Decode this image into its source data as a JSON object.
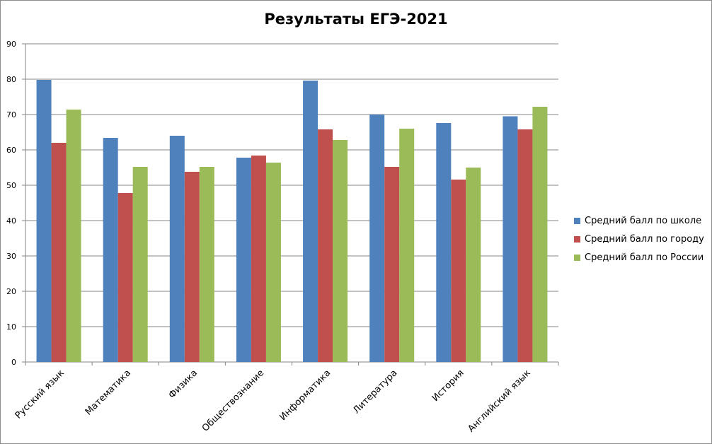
{
  "chart_data": {
    "type": "bar",
    "title": "Результаты ЕГЭ-2021",
    "xlabel": "",
    "ylabel": "",
    "ylim": [
      0,
      90
    ],
    "yticks": [
      0,
      10,
      20,
      30,
      40,
      50,
      60,
      70,
      80,
      90
    ],
    "grid": true,
    "legend_position": "right",
    "categories": [
      "Русский язык",
      "Математика",
      "Физика",
      "Обществознание",
      "Информатика",
      "Литература",
      "История",
      "Английский язык"
    ],
    "series": [
      {
        "name": "Средний балл по школе",
        "color": "#4f81bd",
        "values": [
          79.8,
          63.4,
          64.0,
          57.8,
          79.6,
          70.0,
          67.6,
          69.5
        ]
      },
      {
        "name": "Средний балл по городу",
        "color": "#c0504d",
        "values": [
          62.0,
          47.8,
          53.8,
          58.4,
          65.8,
          55.2,
          51.6,
          65.8
        ]
      },
      {
        "name": "Средний балл по России",
        "color": "#9bbb59",
        "values": [
          71.4,
          55.2,
          55.2,
          56.4,
          62.8,
          66.0,
          55.0,
          72.2
        ]
      }
    ]
  }
}
